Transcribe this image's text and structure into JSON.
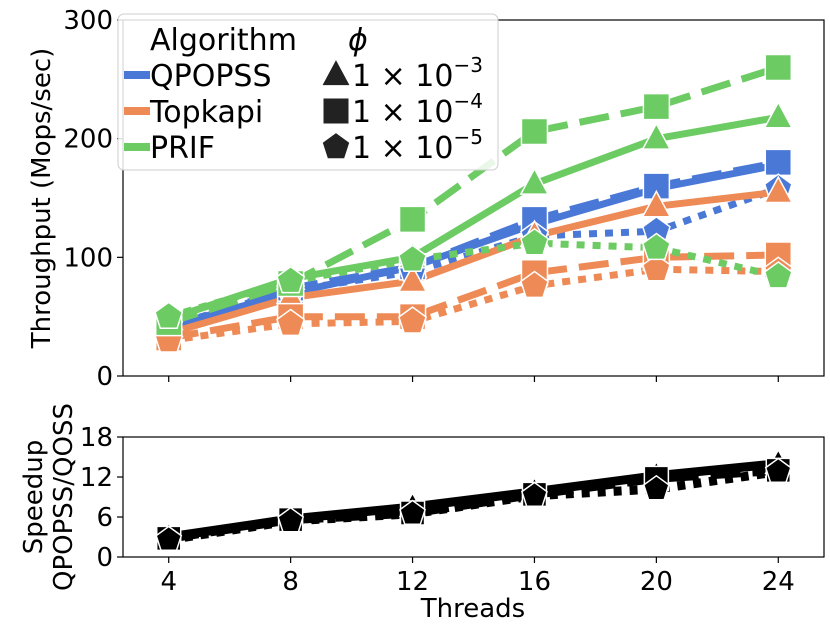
{
  "chart_data": [
    {
      "type": "line",
      "xlabel": "",
      "ylabel": "Throughput (Mops/sec)",
      "x": [
        4,
        8,
        12,
        16,
        20,
        24
      ],
      "xlim": [
        2.5,
        25.5
      ],
      "ylim": [
        0,
        300
      ],
      "yticks": [
        "0",
        "100",
        "200",
        "300"
      ],
      "legend": {
        "placement": "top-left",
        "algorithm_title": "Algorithm",
        "phi_title": "ϕ",
        "algorithms": [
          {
            "name": "QPOPSS",
            "color": "#4a78d6"
          },
          {
            "name": "Topkapi",
            "color": "#ee8a55"
          },
          {
            "name": "PRIF",
            "color": "#6ccb63"
          }
        ],
        "phis": [
          {
            "label": "1 × 10",
            "exp": "−3",
            "marker": "triangle",
            "linestyle": "solid"
          },
          {
            "label": "1 × 10",
            "exp": "−4",
            "marker": "square",
            "linestyle": "dashed"
          },
          {
            "label": "1 × 10",
            "exp": "−5",
            "marker": "pentagon",
            "linestyle": "dotted"
          }
        ]
      },
      "series": [
        {
          "name": "QPOPSS ϕ=1e-3",
          "algorithm": "QPOPSS",
          "marker": "triangle",
          "linestyle": "solid",
          "values": [
            42,
            70,
            92,
            128,
            158,
            178
          ]
        },
        {
          "name": "QPOPSS ϕ=1e-4",
          "algorithm": "QPOPSS",
          "marker": "square",
          "linestyle": "dashed",
          "values": [
            40,
            74,
            92,
            132,
            160,
            180
          ]
        },
        {
          "name": "QPOPSS ϕ=1e-5",
          "algorithm": "QPOPSS",
          "marker": "pentagon",
          "linestyle": "dotted",
          "values": [
            42,
            72,
            88,
            118,
            122,
            158
          ]
        },
        {
          "name": "Topkapi ϕ=1e-3",
          "algorithm": "Topkapi",
          "marker": "triangle",
          "linestyle": "solid",
          "values": [
            36,
            66,
            80,
            118,
            143,
            155
          ]
        },
        {
          "name": "Topkapi ϕ=1e-4",
          "algorithm": "Topkapi",
          "marker": "square",
          "linestyle": "dashed",
          "values": [
            32,
            50,
            50,
            87,
            100,
            102
          ]
        },
        {
          "name": "Topkapi ϕ=1e-5",
          "algorithm": "Topkapi",
          "marker": "pentagon",
          "linestyle": "dotted",
          "values": [
            30,
            44,
            46,
            76,
            90,
            88
          ]
        },
        {
          "name": "PRIF ϕ=1e-3",
          "algorithm": "PRIF",
          "marker": "triangle",
          "linestyle": "solid",
          "values": [
            48,
            82,
            100,
            162,
            200,
            218
          ]
        },
        {
          "name": "PRIF ϕ=1e-4",
          "algorithm": "PRIF",
          "marker": "square",
          "linestyle": "dashed",
          "values": [
            45,
            78,
            132,
            206,
            227,
            260
          ]
        },
        {
          "name": "PRIF ϕ=1e-5",
          "algorithm": "PRIF",
          "marker": "pentagon",
          "linestyle": "dotted",
          "values": [
            50,
            80,
            98,
            112,
            108,
            84
          ]
        }
      ]
    },
    {
      "type": "line",
      "xlabel": "Threads",
      "ylabel_line1": "Speedup",
      "ylabel_line2": "QPOPSS/QOSS",
      "x": [
        4,
        8,
        12,
        16,
        20,
        24
      ],
      "xticks": [
        "4",
        "8",
        "12",
        "16",
        "20",
        "24"
      ],
      "xlim": [
        2.5,
        25.5
      ],
      "ylim": [
        0,
        18
      ],
      "yticks": [
        "0",
        "6",
        "12",
        "18"
      ],
      "series": [
        {
          "name": "ϕ=1e-3",
          "marker": "triangle",
          "linestyle": "solid",
          "color": "#000000",
          "values": [
            3.0,
            5.7,
            7.5,
            9.8,
            12.2,
            14.0
          ]
        },
        {
          "name": "ϕ=1e-4",
          "marker": "square",
          "linestyle": "dashed",
          "color": "#000000",
          "values": [
            2.8,
            5.6,
            6.6,
            9.4,
            11.8,
            13.0
          ]
        },
        {
          "name": "ϕ=1e-5",
          "marker": "pentagon",
          "linestyle": "dotted",
          "color": "#000000",
          "values": [
            2.6,
            5.4,
            6.5,
            9.2,
            10.2,
            12.8
          ]
        }
      ]
    }
  ]
}
